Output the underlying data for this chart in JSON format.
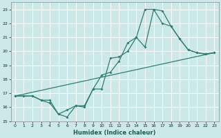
{
  "xlabel": "Humidex (Indice chaleur)",
  "bg_color": "#cce8e8",
  "grid_color": "#ffffff",
  "line_color": "#2e7d6e",
  "xlim": [
    -0.5,
    23.5
  ],
  "ylim": [
    15,
    23.5
  ],
  "yticks": [
    15,
    16,
    17,
    18,
    19,
    20,
    21,
    22,
    23
  ],
  "xticks": [
    0,
    1,
    2,
    3,
    4,
    5,
    6,
    7,
    8,
    9,
    10,
    11,
    12,
    13,
    14,
    15,
    16,
    17,
    18,
    19,
    20,
    21,
    22,
    23
  ],
  "line1_x": [
    0,
    1,
    2,
    3,
    4,
    5,
    6,
    7,
    8,
    9,
    10,
    11,
    12,
    13,
    14,
    15,
    16,
    17,
    18,
    19,
    20,
    21,
    22,
    23
  ],
  "line1_y": [
    16.8,
    16.8,
    16.8,
    16.5,
    16.3,
    15.5,
    15.3,
    16.1,
    16.0,
    17.3,
    18.3,
    18.5,
    19.3,
    20.6,
    21.0,
    20.3,
    23.0,
    22.9,
    21.8,
    20.9,
    20.1,
    19.9,
    19.8,
    19.9
  ],
  "line2_x": [
    0,
    1,
    2,
    3,
    4,
    5,
    6,
    7,
    8,
    9,
    10,
    11,
    12,
    13,
    14,
    15,
    16,
    17,
    18,
    19,
    20,
    21,
    22,
    23
  ],
  "line2_y": [
    16.8,
    16.8,
    16.8,
    16.5,
    16.5,
    15.5,
    15.8,
    16.1,
    16.1,
    17.3,
    17.3,
    19.5,
    19.6,
    20.0,
    21.0,
    23.0,
    23.0,
    22.0,
    21.8,
    20.9,
    20.1,
    19.9,
    19.8,
    19.9
  ],
  "line3_x": [
    0,
    23
  ],
  "line3_y": [
    16.8,
    19.9
  ]
}
